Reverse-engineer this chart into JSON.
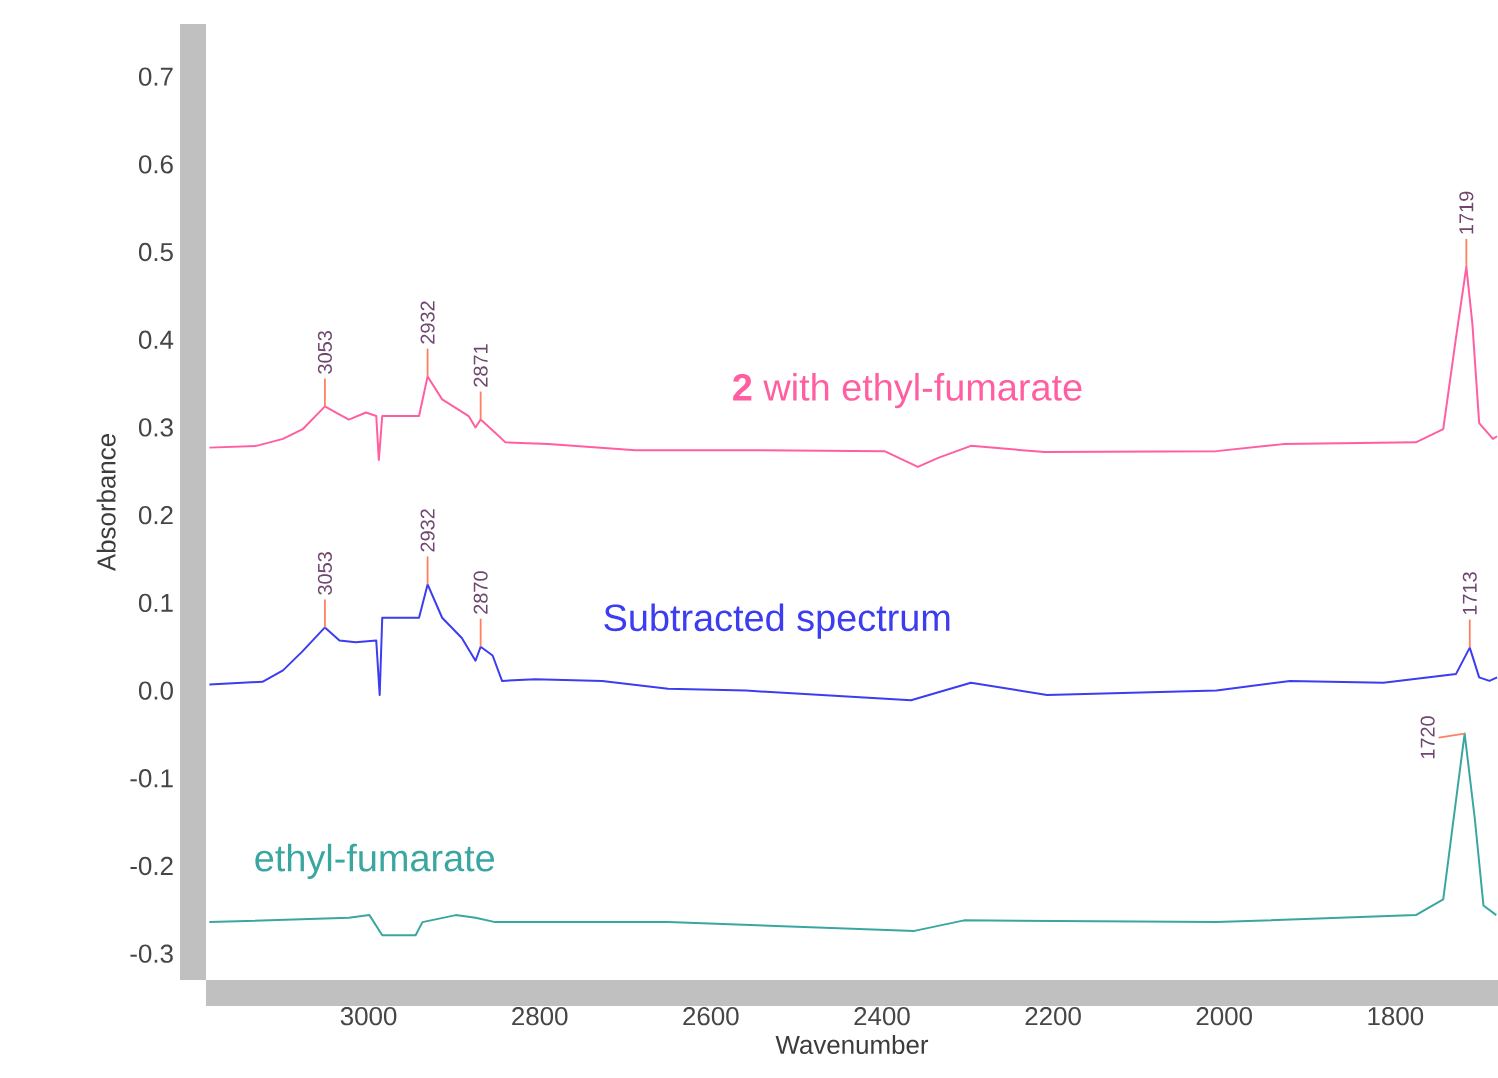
{
  "chart_data": {
    "type": "line",
    "xlabel": "Wavenumber",
    "ylabel": "Absorbance",
    "xlim": [
      3190,
      1680
    ],
    "ylim": [
      -0.33,
      0.76
    ],
    "xticks": [
      3000,
      2800,
      2600,
      2400,
      2200,
      2000,
      1800
    ],
    "yticks": [
      -0.3,
      -0.2,
      -0.1,
      {
        "value": 0,
        "label": "0.0"
      },
      0.1,
      0.2,
      0.3,
      0.4,
      0.5,
      0.6,
      0.7
    ],
    "grid": false,
    "legend": false,
    "marker": "none",
    "line_style": "solid",
    "series": [
      {
        "name": "**2** with ethyl-fumarate",
        "color": "#ff5fa0",
        "x": [
          3186,
          3131,
          3100,
          3077,
          3051,
          3038,
          3023,
          3003,
          2991,
          2988,
          2984,
          2941,
          2931,
          2914,
          2883,
          2875,
          2869,
          2852,
          2840,
          2790,
          2688,
          2556,
          2397,
          2358,
          2335,
          2296,
          2210,
          2009,
          1931,
          1776,
          1744,
          1729,
          1717,
          1710,
          1702,
          1686,
          1681
        ],
        "values": [
          0.277,
          0.279,
          0.287,
          0.298,
          0.324,
          0.317,
          0.309,
          0.317,
          0.313,
          0.263,
          0.313,
          0.313,
          0.358,
          0.332,
          0.313,
          0.3,
          0.309,
          0.294,
          0.283,
          0.281,
          0.274,
          0.274,
          0.273,
          0.255,
          0.265,
          0.279,
          0.272,
          0.273,
          0.281,
          0.283,
          0.298,
          0.403,
          0.483,
          0.419,
          0.305,
          0.287,
          0.29
        ]
      },
      {
        "name": "Subtracted spectrum",
        "color": "#3c3cf0",
        "x": [
          3186,
          3124,
          3100,
          3077,
          3051,
          3034,
          3015,
          2991,
          2987,
          2984,
          2941,
          2931,
          2914,
          2891,
          2875,
          2869,
          2855,
          2844,
          2805,
          2727,
          2650,
          2559,
          2366,
          2296,
          2207,
          2009,
          1923,
          1814,
          1729,
          1713,
          1702,
          1690,
          1681
        ],
        "values": [
          0.007,
          0.01,
          0.023,
          0.045,
          0.072,
          0.057,
          0.055,
          0.057,
          -0.005,
          0.083,
          0.083,
          0.121,
          0.083,
          0.06,
          0.034,
          0.05,
          0.04,
          0.011,
          0.013,
          0.011,
          0.002,
          0.0,
          -0.011,
          0.009,
          -0.005,
          0.0,
          0.011,
          0.009,
          0.019,
          0.049,
          0.015,
          0.011,
          0.015
        ]
      },
      {
        "name": "ethyl-fumarate",
        "color": "#3aa6a0",
        "x": [
          3186,
          3023,
          2999,
          2984,
          2945,
          2937,
          2898,
          2875,
          2852,
          2650,
          2362,
          2304,
          2009,
          1776,
          1744,
          1730,
          1719,
          1707,
          1697,
          1682
        ],
        "values": [
          -0.264,
          -0.259,
          -0.256,
          -0.279,
          -0.279,
          -0.264,
          -0.256,
          -0.259,
          -0.264,
          -0.264,
          -0.274,
          -0.262,
          -0.264,
          -0.256,
          -0.238,
          -0.132,
          -0.049,
          -0.147,
          -0.245,
          -0.256
        ]
      }
    ],
    "annotations": [
      {
        "text": "3053",
        "x": 3051,
        "y": 0.324
      },
      {
        "text": "2932",
        "x": 2931,
        "y": 0.358
      },
      {
        "text": "2871",
        "x": 2869,
        "y": 0.309
      },
      {
        "text": "1719",
        "x": 1717,
        "y": 0.483
      },
      {
        "text": "3053",
        "x": 3051,
        "y": 0.072
      },
      {
        "text": "2932",
        "x": 2931,
        "y": 0.121
      },
      {
        "text": "2870",
        "x": 2869,
        "y": 0.05
      },
      {
        "text": "1713",
        "x": 1713,
        "y": 0.049
      },
      {
        "text": "1720",
        "x": 1719,
        "y": -0.049
      }
    ]
  }
}
